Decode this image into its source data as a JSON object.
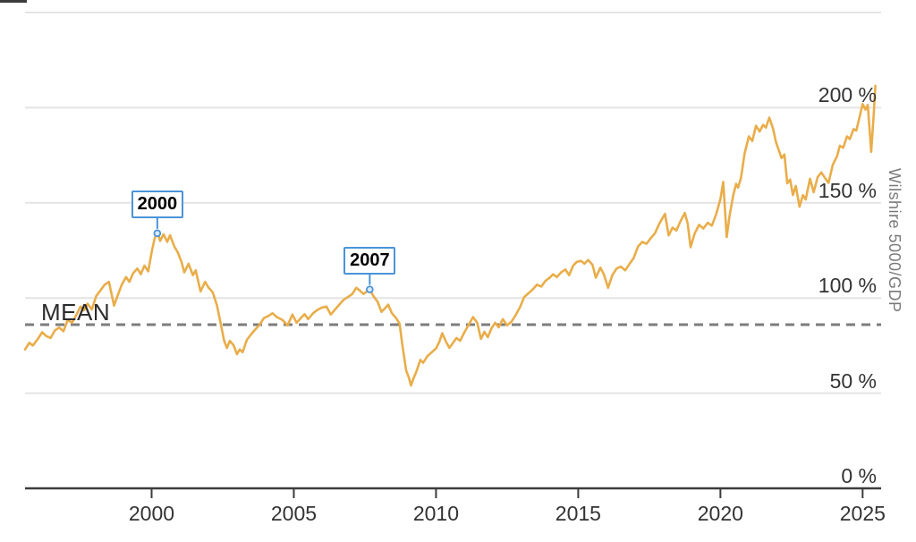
{
  "chart_data": {
    "type": "line",
    "title": "",
    "ylabel_right": "Wilshire 5000/GDP",
    "xlabel": "",
    "x_range": [
      1995.55,
      2025.65
    ],
    "y_range": [
      0,
      250
    ],
    "grid": true,
    "legend": "none",
    "line_color": "#e9ad49",
    "accent_color": "#4a94d8",
    "mean_line": {
      "label": "MEAN",
      "value": 86,
      "style": "dashed",
      "color": "#7d7d7d"
    },
    "x_ticks": [
      {
        "value": 2000,
        "label": "2000"
      },
      {
        "value": 2005,
        "label": "2005"
      },
      {
        "value": 2010,
        "label": "2010"
      },
      {
        "value": 2015,
        "label": "2015"
      },
      {
        "value": 2020,
        "label": "2020"
      },
      {
        "value": 2025,
        "label": "2025"
      }
    ],
    "y_ticks": [
      {
        "value": 250,
        "label": ""
      },
      {
        "value": 200,
        "label": "200 %"
      },
      {
        "value": 150,
        "label": "150 %"
      },
      {
        "value": 100,
        "label": "100 %"
      },
      {
        "value": 50,
        "label": "50 %"
      },
      {
        "value": 0,
        "label": "0 %"
      }
    ],
    "annotations": [
      {
        "label": "2000",
        "year": 2000.2,
        "value": 134
      },
      {
        "label": "2007",
        "year": 2007.67,
        "value": 104.5
      }
    ],
    "series": [
      {
        "name": "Wilshire 5000 to GDP ratio (%)",
        "points": [
          [
            1995.55,
            73
          ],
          [
            1995.7,
            76.5
          ],
          [
            1995.82,
            75
          ],
          [
            1996.0,
            78.5
          ],
          [
            1996.15,
            82
          ],
          [
            1996.3,
            80
          ],
          [
            1996.45,
            79
          ],
          [
            1996.6,
            83
          ],
          [
            1996.75,
            84.5
          ],
          [
            1996.9,
            82.5
          ],
          [
            1997.05,
            88.5
          ],
          [
            1997.2,
            87
          ],
          [
            1997.35,
            91
          ],
          [
            1997.5,
            95.5
          ],
          [
            1997.62,
            93.5
          ],
          [
            1997.75,
            97
          ],
          [
            1997.9,
            94
          ],
          [
            1998.05,
            101
          ],
          [
            1998.2,
            104
          ],
          [
            1998.35,
            107
          ],
          [
            1998.5,
            108.5
          ],
          [
            1998.58,
            103
          ],
          [
            1998.68,
            96
          ],
          [
            1998.8,
            101
          ],
          [
            1998.95,
            107
          ],
          [
            1999.1,
            111
          ],
          [
            1999.22,
            108.5
          ],
          [
            1999.35,
            113
          ],
          [
            1999.5,
            115.5
          ],
          [
            1999.62,
            112.5
          ],
          [
            1999.75,
            117
          ],
          [
            1999.88,
            114
          ],
          [
            2000.0,
            124
          ],
          [
            2000.1,
            131
          ],
          [
            2000.2,
            135
          ],
          [
            2000.3,
            130
          ],
          [
            2000.42,
            133.5
          ],
          [
            2000.55,
            129.5
          ],
          [
            2000.65,
            133
          ],
          [
            2000.8,
            127
          ],
          [
            2000.92,
            124
          ],
          [
            2001.05,
            119
          ],
          [
            2001.15,
            113.5
          ],
          [
            2001.3,
            118
          ],
          [
            2001.45,
            112
          ],
          [
            2001.55,
            114.5
          ],
          [
            2001.72,
            103.5
          ],
          [
            2001.88,
            108.5
          ],
          [
            2002.0,
            105.5
          ],
          [
            2002.15,
            103
          ],
          [
            2002.3,
            96
          ],
          [
            2002.45,
            85
          ],
          [
            2002.55,
            77.5
          ],
          [
            2002.65,
            73.8
          ],
          [
            2002.75,
            77.5
          ],
          [
            2002.88,
            75.2
          ],
          [
            2003.0,
            70.5
          ],
          [
            2003.1,
            73
          ],
          [
            2003.2,
            71.5
          ],
          [
            2003.35,
            78
          ],
          [
            2003.5,
            81
          ],
          [
            2003.65,
            83.5
          ],
          [
            2003.8,
            86
          ],
          [
            2003.95,
            89.5
          ],
          [
            2004.1,
            90.5
          ],
          [
            2004.25,
            92
          ],
          [
            2004.4,
            90
          ],
          [
            2004.6,
            88.5
          ],
          [
            2004.78,
            85.6
          ],
          [
            2004.95,
            91.3
          ],
          [
            2005.1,
            87
          ],
          [
            2005.25,
            89.5
          ],
          [
            2005.38,
            91.5
          ],
          [
            2005.5,
            88.9
          ],
          [
            2005.68,
            92
          ],
          [
            2005.85,
            94
          ],
          [
            2006.0,
            95
          ],
          [
            2006.15,
            95.5
          ],
          [
            2006.3,
            91.3
          ],
          [
            2006.45,
            94
          ],
          [
            2006.6,
            96.5
          ],
          [
            2006.75,
            99
          ],
          [
            2006.9,
            100.5
          ],
          [
            2007.05,
            102
          ],
          [
            2007.2,
            105.4
          ],
          [
            2007.35,
            103.5
          ],
          [
            2007.45,
            102.1
          ],
          [
            2007.67,
            104.5
          ],
          [
            2007.8,
            101
          ],
          [
            2007.95,
            98
          ],
          [
            2008.08,
            92.7
          ],
          [
            2008.2,
            94.5
          ],
          [
            2008.32,
            96.5
          ],
          [
            2008.45,
            92
          ],
          [
            2008.6,
            89.4
          ],
          [
            2008.72,
            86.5
          ],
          [
            2008.82,
            75
          ],
          [
            2008.95,
            62
          ],
          [
            2009.05,
            58
          ],
          [
            2009.12,
            54
          ],
          [
            2009.2,
            57.5
          ],
          [
            2009.3,
            61
          ],
          [
            2009.45,
            67.5
          ],
          [
            2009.55,
            66
          ],
          [
            2009.7,
            69.5
          ],
          [
            2009.85,
            71.5
          ],
          [
            2010.0,
            73.5
          ],
          [
            2010.12,
            77
          ],
          [
            2010.22,
            81.5
          ],
          [
            2010.35,
            77
          ],
          [
            2010.47,
            73.8
          ],
          [
            2010.6,
            76.5
          ],
          [
            2010.72,
            79
          ],
          [
            2010.85,
            77.5
          ],
          [
            2011.0,
            82
          ],
          [
            2011.15,
            86
          ],
          [
            2011.3,
            90
          ],
          [
            2011.45,
            87
          ],
          [
            2011.58,
            78.5
          ],
          [
            2011.7,
            82.3
          ],
          [
            2011.82,
            79.4
          ],
          [
            2011.95,
            84
          ],
          [
            2012.08,
            87
          ],
          [
            2012.2,
            84.6
          ],
          [
            2012.35,
            88.9
          ],
          [
            2012.5,
            85.6
          ],
          [
            2012.65,
            87.5
          ],
          [
            2012.8,
            91
          ],
          [
            2012.95,
            95
          ],
          [
            2013.1,
            100.5
          ],
          [
            2013.25,
            102.5
          ],
          [
            2013.4,
            104.5
          ],
          [
            2013.55,
            107
          ],
          [
            2013.7,
            106
          ],
          [
            2013.85,
            109
          ],
          [
            2014.0,
            110.7
          ],
          [
            2014.12,
            112.5
          ],
          [
            2014.25,
            111
          ],
          [
            2014.4,
            113.5
          ],
          [
            2014.55,
            115
          ],
          [
            2014.68,
            112
          ],
          [
            2014.82,
            117
          ],
          [
            2014.95,
            119
          ],
          [
            2015.1,
            119.5
          ],
          [
            2015.22,
            118
          ],
          [
            2015.35,
            120
          ],
          [
            2015.5,
            117.5
          ],
          [
            2015.62,
            110.7
          ],
          [
            2015.78,
            116
          ],
          [
            2015.9,
            112.5
          ],
          [
            2016.05,
            105.4
          ],
          [
            2016.2,
            112
          ],
          [
            2016.35,
            115.5
          ],
          [
            2016.5,
            116.5
          ],
          [
            2016.65,
            114.5
          ],
          [
            2016.8,
            117.8
          ],
          [
            2016.95,
            121
          ],
          [
            2017.1,
            127
          ],
          [
            2017.25,
            129.5
          ],
          [
            2017.4,
            128.5
          ],
          [
            2017.55,
            131.5
          ],
          [
            2017.7,
            134
          ],
          [
            2017.85,
            139
          ],
          [
            2018.05,
            144.2
          ],
          [
            2018.18,
            132.9
          ],
          [
            2018.32,
            137
          ],
          [
            2018.45,
            135.5
          ],
          [
            2018.6,
            140.5
          ],
          [
            2018.75,
            144.7
          ],
          [
            2018.85,
            139
          ],
          [
            2018.95,
            126.7
          ],
          [
            2019.1,
            134
          ],
          [
            2019.25,
            138.5
          ],
          [
            2019.4,
            136.5
          ],
          [
            2019.55,
            139.5
          ],
          [
            2019.7,
            138
          ],
          [
            2019.85,
            144
          ],
          [
            2020.0,
            152
          ],
          [
            2020.1,
            161
          ],
          [
            2020.22,
            132
          ],
          [
            2020.32,
            143
          ],
          [
            2020.45,
            154
          ],
          [
            2020.55,
            160
          ],
          [
            2020.62,
            158
          ],
          [
            2020.72,
            163
          ],
          [
            2020.85,
            176
          ],
          [
            2021.0,
            184.9
          ],
          [
            2021.12,
            182.5
          ],
          [
            2021.25,
            190.5
          ],
          [
            2021.38,
            187.5
          ],
          [
            2021.5,
            191
          ],
          [
            2021.6,
            189.5
          ],
          [
            2021.72,
            194.8
          ],
          [
            2021.85,
            189
          ],
          [
            2021.95,
            182
          ],
          [
            2022.05,
            177.8
          ],
          [
            2022.15,
            173.5
          ],
          [
            2022.25,
            175.4
          ],
          [
            2022.35,
            160.3
          ],
          [
            2022.45,
            162.2
          ],
          [
            2022.55,
            154.1
          ],
          [
            2022.65,
            158.9
          ],
          [
            2022.78,
            148
          ],
          [
            2022.9,
            154.1
          ],
          [
            2023.0,
            151.8
          ],
          [
            2023.15,
            162.7
          ],
          [
            2023.28,
            155.6
          ],
          [
            2023.42,
            163.6
          ],
          [
            2023.55,
            166
          ],
          [
            2023.68,
            163
          ],
          [
            2023.8,
            160.5
          ],
          [
            2023.95,
            170
          ],
          [
            2024.1,
            174.5
          ],
          [
            2024.2,
            180
          ],
          [
            2024.32,
            179
          ],
          [
            2024.45,
            184.9
          ],
          [
            2024.55,
            183.5
          ],
          [
            2024.68,
            188.7
          ],
          [
            2024.78,
            188
          ],
          [
            2024.9,
            195.7
          ],
          [
            2025.0,
            201.9
          ],
          [
            2025.1,
            199
          ],
          [
            2025.18,
            201.4
          ],
          [
            2025.3,
            176.8
          ],
          [
            2025.38,
            194
          ],
          [
            2025.45,
            211.5
          ]
        ]
      }
    ]
  }
}
